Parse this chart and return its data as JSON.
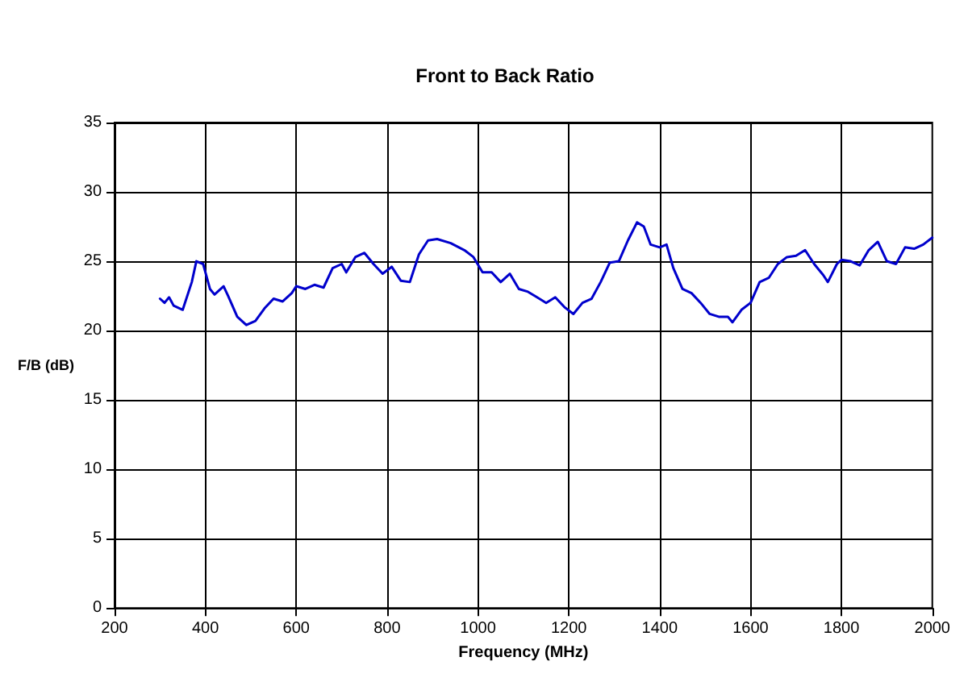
{
  "chart_data": {
    "type": "line",
    "title": "Front to Back Ratio",
    "xlabel": "Frequency (MHz)",
    "ylabel": "F/B (dB)",
    "xlim": [
      200,
      2000
    ],
    "xticks": [
      200,
      400,
      600,
      800,
      1000,
      1200,
      1400,
      1600,
      1800,
      2000
    ],
    "ylim": [
      0,
      35
    ],
    "yticks": [
      0,
      5,
      10,
      15,
      20,
      25,
      30,
      35
    ],
    "grid": true,
    "marker": "none",
    "line_style": "solid",
    "x": [
      300,
      310,
      320,
      330,
      350,
      370,
      380,
      395,
      410,
      420,
      440,
      450,
      470,
      490,
      510,
      530,
      550,
      570,
      590,
      600,
      620,
      640,
      660,
      680,
      700,
      710,
      730,
      750,
      770,
      790,
      810,
      830,
      850,
      870,
      890,
      910,
      940,
      970,
      990,
      1010,
      1030,
      1050,
      1070,
      1090,
      1110,
      1130,
      1150,
      1170,
      1190,
      1210,
      1230,
      1250,
      1270,
      1290,
      1310,
      1330,
      1350,
      1365,
      1380,
      1400,
      1415,
      1430,
      1450,
      1470,
      1490,
      1510,
      1530,
      1550,
      1560,
      1580,
      1600,
      1620,
      1640,
      1660,
      1680,
      1700,
      1720,
      1740,
      1760,
      1770,
      1790,
      1800,
      1820,
      1840,
      1860,
      1880,
      1900,
      1920,
      1940,
      1960,
      1980,
      2000
    ],
    "series": [
      {
        "color": "#0000cc",
        "values": [
          22.3,
          22.0,
          22.4,
          21.8,
          21.5,
          23.5,
          25.0,
          24.8,
          23.0,
          22.6,
          23.2,
          22.5,
          21.0,
          20.4,
          20.7,
          21.6,
          22.3,
          22.1,
          22.7,
          23.2,
          23.0,
          23.3,
          23.1,
          24.5,
          24.8,
          24.2,
          25.3,
          25.6,
          24.8,
          24.1,
          24.6,
          23.6,
          23.5,
          25.5,
          26.5,
          26.6,
          26.3,
          25.8,
          25.3,
          24.2,
          24.2,
          23.5,
          24.1,
          23.0,
          22.8,
          22.4,
          22.0,
          22.4,
          21.7,
          21.2,
          22.0,
          22.3,
          23.5,
          24.9,
          25.0,
          26.5,
          27.8,
          27.5,
          26.2,
          26.0,
          26.2,
          24.5,
          23.0,
          22.7,
          22.0,
          21.2,
          21.0,
          21.0,
          20.6,
          21.5,
          22.0,
          23.5,
          23.8,
          24.8,
          25.3,
          25.4,
          25.8,
          24.8,
          24.0,
          23.5,
          24.8,
          25.1,
          25.0,
          24.7,
          25.8,
          26.4,
          25.0,
          24.8,
          26.0,
          25.9,
          26.2,
          26.7
        ]
      }
    ]
  }
}
